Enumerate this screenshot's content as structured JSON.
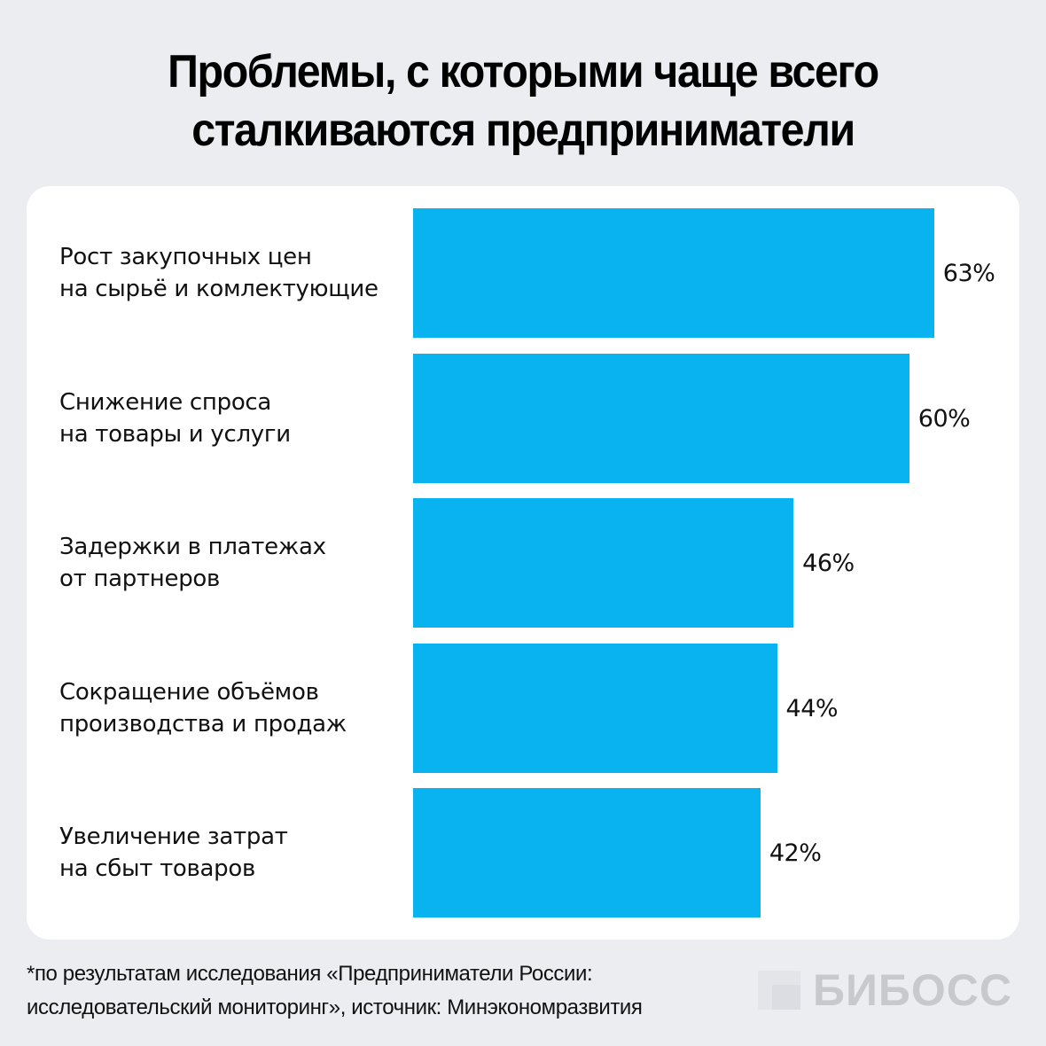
{
  "title": {
    "line1": "Проблемы, с которыми чаще всего",
    "line2": "сталкиваются предприниматели"
  },
  "bars": [
    {
      "line1": "Рост закупочных цен",
      "line2": "на сырьё и комлектующие",
      "value": 63,
      "label": "63%"
    },
    {
      "line1": "Снижение спроса",
      "line2": "на товары и услуги",
      "value": 60,
      "label": "60%"
    },
    {
      "line1": "Задержки в платежах",
      "line2": "от партнеров",
      "value": 46,
      "label": "46%"
    },
    {
      "line1": "Сокращение объёмов",
      "line2": "производства и продаж",
      "value": 44,
      "label": "44%"
    },
    {
      "line1": "Увеличение затрат",
      "line2": "на сбыт товаров",
      "value": 42,
      "label": "42%"
    }
  ],
  "footnote": {
    "line1": "*по результатам исследования «Предприниматели России:",
    "line2": "исследовательский мониторинг», источник: Минэкономразвития"
  },
  "logo": {
    "text": "БИБОСС",
    "icon": "bibоss-logo-mark-icon"
  },
  "colors": {
    "bar": "#08b3ef",
    "background": "#ecedf1",
    "card": "#ffffff",
    "logo": "#c8c9cd"
  },
  "chart_data": {
    "type": "bar",
    "orientation": "horizontal",
    "title": "Проблемы, с которыми чаще всего сталкиваются предприниматели",
    "categories": [
      "Рост закупочных цен на сырьё и комлектующие",
      "Снижение спроса на товары и услуги",
      "Задержки в платежах от партнеров",
      "Сокращение объёмов производства и продаж",
      "Увеличение затрат на сбыт товаров"
    ],
    "values": [
      63,
      60,
      46,
      44,
      42
    ],
    "unit": "%",
    "xlabel": "",
    "ylabel": "",
    "grid": false,
    "legend": null,
    "annotations": [
      "*по результатам исследования «Предприниматели России: исследовательский мониторинг», источник: Минэкономразвития"
    ]
  }
}
